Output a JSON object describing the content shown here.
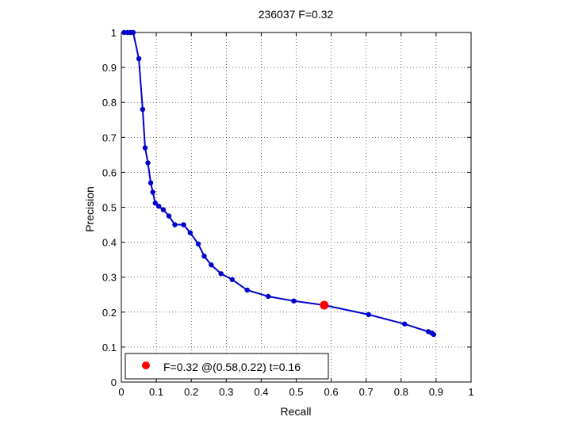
{
  "chart_data": {
    "type": "line",
    "title": "236037 F=0.32",
    "xlabel": "Recall",
    "ylabel": "Precision",
    "xlim": [
      0,
      1
    ],
    "ylim": [
      0,
      1
    ],
    "xticks": [
      0,
      0.1,
      0.2,
      0.3,
      0.4,
      0.5,
      0.6,
      0.7,
      0.8,
      0.9,
      1
    ],
    "yticks": [
      0,
      0.1,
      0.2,
      0.3,
      0.4,
      0.5,
      0.6,
      0.7,
      0.8,
      0.9,
      1
    ],
    "xtick_labels": [
      "0",
      "0.1",
      "0.2",
      "0.3",
      "0.4",
      "0.5",
      "0.6",
      "0.7",
      "0.8",
      "0.9",
      "1"
    ],
    "ytick_labels": [
      "0",
      "0.1",
      "0.2",
      "0.3",
      "0.4",
      "0.5",
      "0.6",
      "0.7",
      "0.8",
      "0.9",
      "1"
    ],
    "grid": true,
    "grid_style": "dotted",
    "legend_position": "bottom-left",
    "series": [
      {
        "color": "#0000cc",
        "points": [
          [
            0.008,
            1.0
          ],
          [
            0.018,
            1.0
          ],
          [
            0.026,
            1.0
          ],
          [
            0.034,
            1.0
          ],
          [
            0.05,
            0.925
          ],
          [
            0.061,
            0.78
          ],
          [
            0.068,
            0.67
          ],
          [
            0.076,
            0.627
          ],
          [
            0.084,
            0.57
          ],
          [
            0.09,
            0.543
          ],
          [
            0.097,
            0.512
          ],
          [
            0.107,
            0.503
          ],
          [
            0.12,
            0.493
          ],
          [
            0.136,
            0.475
          ],
          [
            0.153,
            0.45
          ],
          [
            0.178,
            0.45
          ],
          [
            0.197,
            0.427
          ],
          [
            0.22,
            0.395
          ],
          [
            0.237,
            0.36
          ],
          [
            0.257,
            0.335
          ],
          [
            0.285,
            0.31
          ],
          [
            0.317,
            0.293
          ],
          [
            0.36,
            0.263
          ],
          [
            0.42,
            0.245
          ],
          [
            0.493,
            0.232
          ],
          [
            0.58,
            0.22
          ],
          [
            0.707,
            0.193
          ],
          [
            0.81,
            0.166
          ],
          [
            0.878,
            0.144
          ],
          [
            0.888,
            0.14
          ],
          [
            0.893,
            0.136
          ]
        ]
      }
    ],
    "highlight_point": {
      "x": 0.58,
      "y": 0.22,
      "color": "#ff0000",
      "label": "F=0.32 @(0.58,0.22) t=0.16"
    }
  }
}
